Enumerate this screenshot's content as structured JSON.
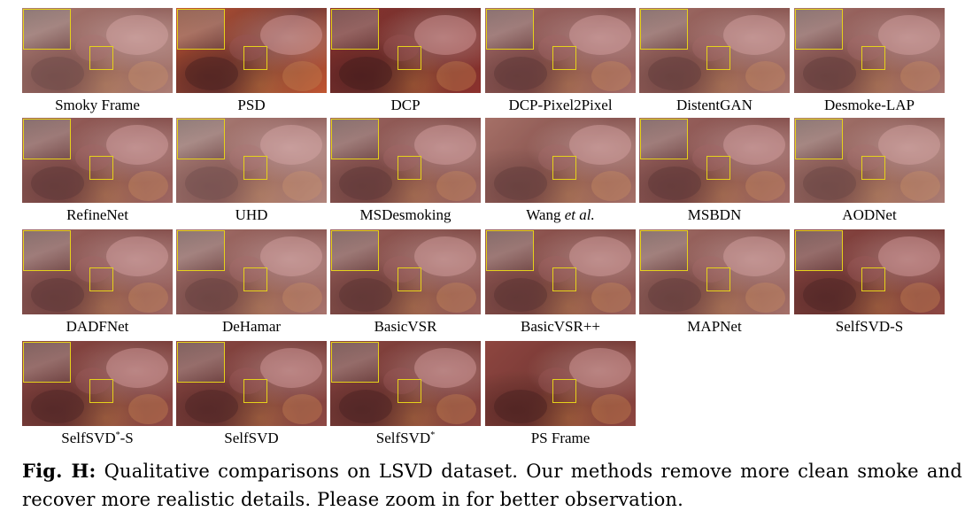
{
  "figure": {
    "caption_label": "Fig. H:",
    "caption_text": " Qualitative comparisons on LSVD dataset. Our methods remove more clean smoke and recover more realistic details. Please zoom in for better observation.",
    "zoom_box_color": "#e6d21a",
    "panels": [
      {
        "label": "Smoky Frame",
        "tint": "#9b5f55",
        "haze": 0.55,
        "inset": true
      },
      {
        "label": "PSD",
        "tint": "#c0502a",
        "haze": 0.1,
        "inset": true
      },
      {
        "label": "DCP",
        "tint": "#8a2e2a",
        "haze": 0.05,
        "inset": true
      },
      {
        "label": "DCP-Pixel2Pixel",
        "tint": "#9a5a55",
        "haze": 0.35,
        "inset": true
      },
      {
        "label": "DistentGAN",
        "tint": "#9a5d55",
        "haze": 0.4,
        "inset": true
      },
      {
        "label": "Desmoke-LAP",
        "tint": "#9b5e58",
        "haze": 0.4,
        "inset": true
      },
      {
        "label": "RefineNet",
        "tint": "#93524c",
        "haze": 0.35,
        "inset": true
      },
      {
        "label": "UHD",
        "tint": "#a0685c",
        "haze": 0.6,
        "inset": true
      },
      {
        "label": "MSDesmoking",
        "tint": "#93554e",
        "haze": 0.35,
        "inset": true
      },
      {
        "label_pre": "Wang ",
        "label_em": "et al.",
        "tint": "#98594f",
        "haze": 0.4,
        "inset": false
      },
      {
        "label": "MSBDN",
        "tint": "#955650",
        "haze": 0.35,
        "inset": true
      },
      {
        "label": "AODNet",
        "tint": "#9c6258",
        "haze": 0.5,
        "inset": true
      },
      {
        "label": "DADFNet",
        "tint": "#92524c",
        "haze": 0.35,
        "inset": true
      },
      {
        "label": "DeHamar",
        "tint": "#9a5b54",
        "haze": 0.45,
        "inset": true
      },
      {
        "label": "BasicVSR",
        "tint": "#8f4d48",
        "haze": 0.3,
        "inset": true
      },
      {
        "label": "BasicVSR++",
        "tint": "#8e4c47",
        "haze": 0.3,
        "inset": true
      },
      {
        "label": "MAPNet",
        "tint": "#975a52",
        "haze": 0.4,
        "inset": true
      },
      {
        "label": "SelfSVD-S",
        "tint": "#863c38",
        "haze": 0.15,
        "inset": true
      },
      {
        "label_pre": "SelfSVD",
        "label_sup": "*",
        "label_post": "-S",
        "tint": "#883f3a",
        "haze": 0.15,
        "inset": true
      },
      {
        "label": "SelfSVD",
        "tint": "#873e39",
        "haze": 0.15,
        "inset": true
      },
      {
        "label_pre": "SelfSVD",
        "label_sup": "*",
        "tint": "#873d38",
        "haze": 0.12,
        "inset": true
      },
      {
        "label": "PS Frame",
        "tint": "#8a3f3a",
        "haze": 0.1,
        "inset": false
      }
    ]
  }
}
